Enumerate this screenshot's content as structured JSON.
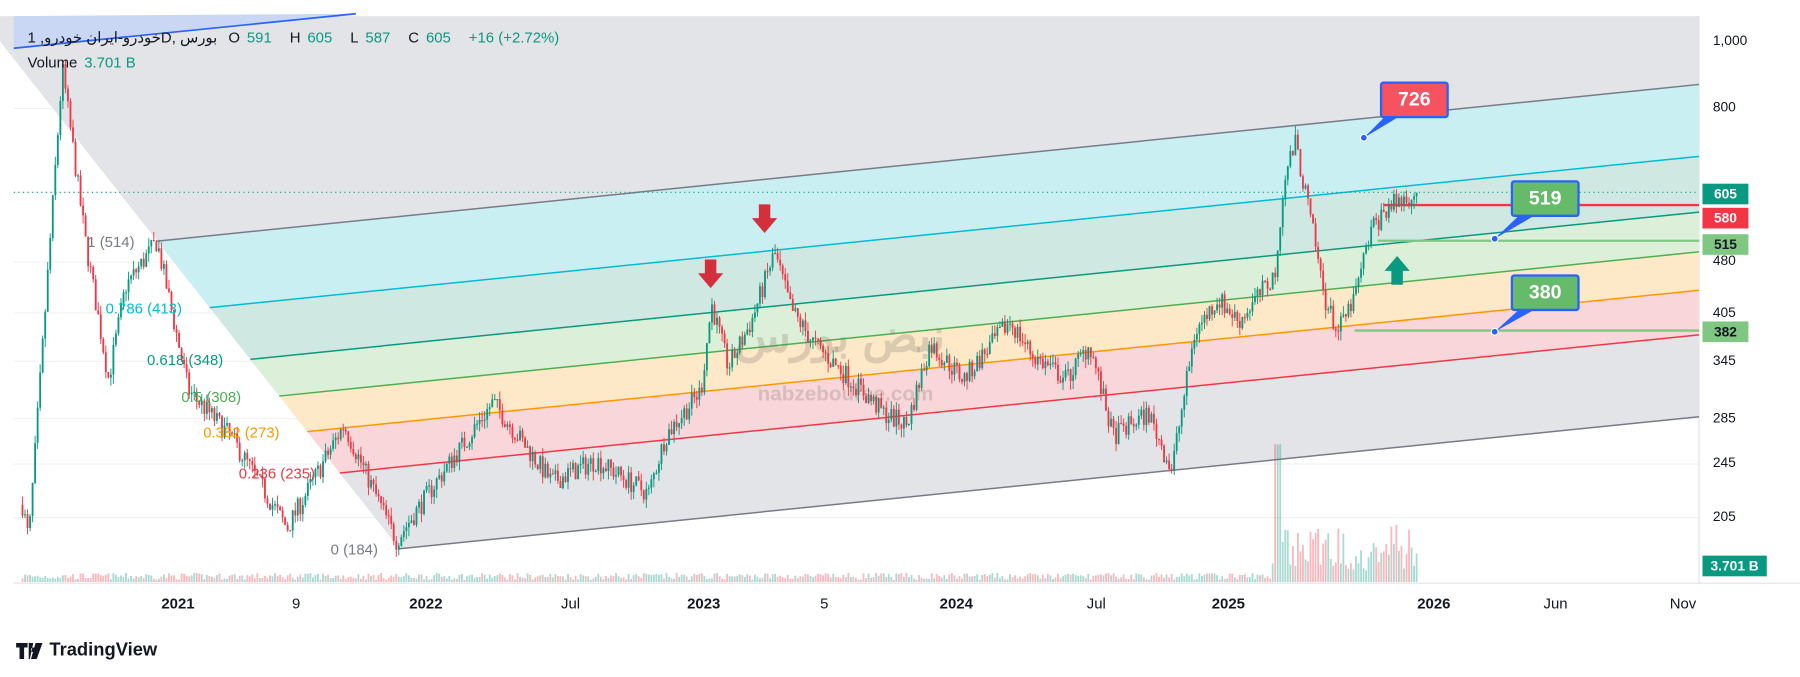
{
  "legend": {
    "symbol": "1 ,خودرو-ایران خودروD, بورس",
    "open_label": "O",
    "open": "591",
    "high_label": "H",
    "high": "605",
    "low_label": "L",
    "low": "587",
    "close_label": "C",
    "close": "605",
    "change": "+16 (+2.72%)",
    "volume_label": "Volume",
    "volume": "3.701 B"
  },
  "price_axis": [
    "1,000",
    "800",
    "480",
    "405",
    "345",
    "285",
    "245",
    "205"
  ],
  "price_tags": {
    "last": "605",
    "red_level": "580",
    "green_level_1": "515",
    "green_level_2": "382",
    "volume": "3.701 B"
  },
  "time_axis": [
    {
      "label": "2021",
      "bold": true
    },
    {
      "label": "9",
      "bold": false
    },
    {
      "label": "2022",
      "bold": true
    },
    {
      "label": "Jul",
      "bold": false
    },
    {
      "label": "2023",
      "bold": true
    },
    {
      "label": "5",
      "bold": false
    },
    {
      "label": "2024",
      "bold": true
    },
    {
      "label": "Jul",
      "bold": false
    },
    {
      "label": "2025",
      "bold": true
    },
    {
      "label": "2026",
      "bold": true
    },
    {
      "label": "Jun",
      "bold": false
    },
    {
      "label": "Nov",
      "bold": false
    }
  ],
  "fib_levels": [
    {
      "label": "1 (514)",
      "color": "#787b86"
    },
    {
      "label": "0.786 (413)",
      "color": "#00bcd4"
    },
    {
      "label": "0.618 (348)",
      "color": "#089981"
    },
    {
      "label": "0.5 (308)",
      "color": "#4caf50"
    },
    {
      "label": "0.382 (273)",
      "color": "#ff9800"
    },
    {
      "label": "0.236 (235)",
      "color": "#f23645"
    },
    {
      "label": "0 (184)",
      "color": "#787b86"
    }
  ],
  "callouts": {
    "target": "726",
    "support_1": "519",
    "support_2": "380"
  },
  "watermark": {
    "text_fa": "نبض بورس",
    "url": "nabzebourse.com"
  },
  "brand": "TradingView",
  "colors": {
    "up": "#089981",
    "down": "#f23645",
    "accent": "#2962ff",
    "green_callout": "#66bb6a",
    "red_callout": "#f7525f"
  },
  "chart_data": {
    "type": "candlestick",
    "scale": "log",
    "ylim": [
      180,
      1050
    ],
    "x_unit": "months since Jan 2021",
    "price_path": [
      [
        -7.4,
        214
      ],
      [
        -7.1,
        190
      ],
      [
        -5.5,
        912
      ],
      [
        -4.4,
        514
      ],
      [
        -3.3,
        325
      ],
      [
        -2.5,
        442
      ],
      [
        -1.0,
        514
      ],
      [
        0.5,
        313
      ],
      [
        2.5,
        269
      ],
      [
        5.2,
        198
      ],
      [
        7.9,
        279
      ],
      [
        10.4,
        190
      ],
      [
        12.3,
        231
      ],
      [
        15.0,
        301
      ],
      [
        17.8,
        231
      ],
      [
        19.9,
        248
      ],
      [
        22.4,
        222
      ],
      [
        23.2,
        269
      ],
      [
        24.9,
        313
      ],
      [
        25.4,
        417
      ],
      [
        26.2,
        338
      ],
      [
        27.3,
        394
      ],
      [
        28.4,
        495
      ],
      [
        29.2,
        409
      ],
      [
        30.3,
        365
      ],
      [
        32.0,
        325
      ],
      [
        33.6,
        290
      ],
      [
        34.7,
        279
      ],
      [
        35.8,
        365
      ],
      [
        37.4,
        325
      ],
      [
        39.6,
        394
      ],
      [
        40.7,
        351
      ],
      [
        42.3,
        325
      ],
      [
        43.4,
        365
      ],
      [
        44.5,
        269
      ],
      [
        46.2,
        290
      ],
      [
        47.3,
        240
      ],
      [
        48.4,
        379
      ],
      [
        49.5,
        425
      ],
      [
        50.5,
        394
      ],
      [
        52.2,
        459
      ],
      [
        52.7,
        647
      ],
      [
        53.2,
        712
      ],
      [
        53.8,
        577
      ],
      [
        54.6,
        425
      ],
      [
        55.2,
        379
      ],
      [
        56.0,
        425
      ],
      [
        56.8,
        534
      ],
      [
        57.6,
        577
      ],
      [
        59.0,
        605
      ]
    ]
  }
}
